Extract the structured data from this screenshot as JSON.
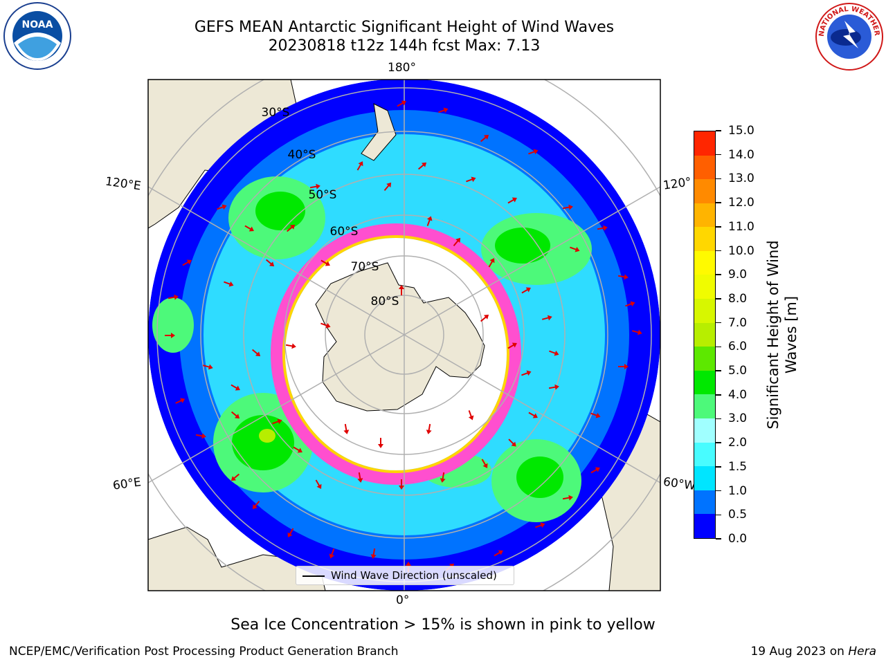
{
  "title_line1": "GEFS MEAN Antarctic Significant Height of Wind Waves",
  "title_line2": "20230818 t12z 144h fcst   Max: 7.13",
  "lon_labels": {
    "top": "180°",
    "bottom": "0°",
    "upper_left": "120°E",
    "upper_right": "120°",
    "lower_left": "60°E",
    "lower_right": "60°W"
  },
  "lat_labels": [
    "30°S",
    "40°S",
    "50°S",
    "60°S",
    "70°S",
    "80°S"
  ],
  "legend": {
    "label": "Wind Wave Direction (unscaled)"
  },
  "colorbar": {
    "title": "Significant Height of Wind Waves [m]",
    "ticks": [
      "0.0",
      "0.5",
      "1.0",
      "1.5",
      "2.0",
      "3.0",
      "4.0",
      "5.0",
      "6.0",
      "7.0",
      "8.0",
      "9.0",
      "10.0",
      "11.0",
      "12.0",
      "13.0",
      "14.0",
      "15.0"
    ],
    "colors": [
      "#0000ff",
      "#0073ff",
      "#00e5ff",
      "#48fcff",
      "#a0ffff",
      "#4df97a",
      "#00e800",
      "#5de800",
      "#b7ee00",
      "#d7f700",
      "#f0fc00",
      "#fffa00",
      "#ffd700",
      "#ffb400",
      "#ff8a00",
      "#ff5f00",
      "#ff2600"
    ]
  },
  "footer_note": "Sea Ice Concentration > 15% is shown in pink to yellow",
  "credit": "NCEP/EMC/Verification Post Processing Product Generation Branch",
  "date_text": "19 Aug 2023 on ",
  "date_host": "Hera",
  "logos": {
    "left": "NOAA",
    "right": "NATIONAL WEATHER SERVICE"
  }
}
